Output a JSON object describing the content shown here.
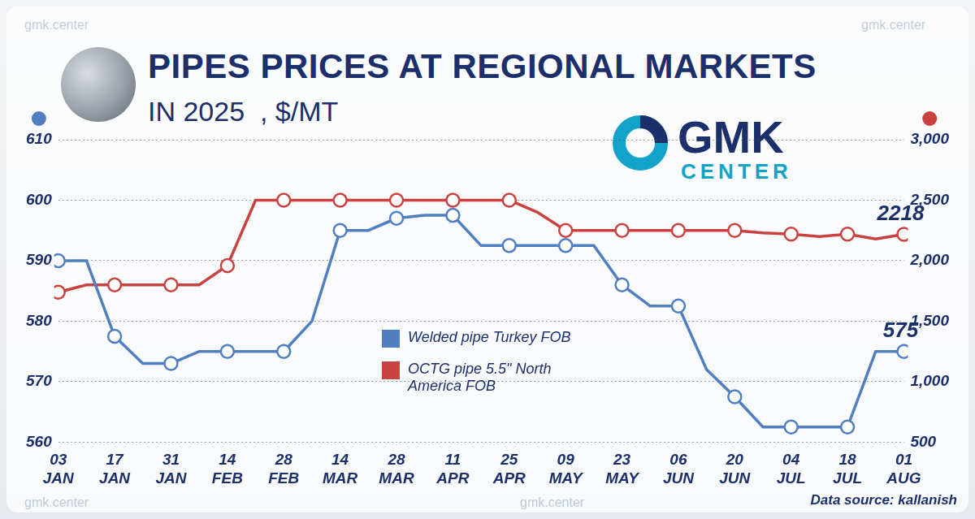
{
  "chart_data": {
    "type": "line",
    "title": "PIPES PRICES AT REGIONAL MARKETS",
    "subtitle": "IN 2025  , $/MT",
    "brand": [
      "GMK",
      "CENTER"
    ],
    "watermark": "gmk.center",
    "source": "Data source: kallanish",
    "categories": [
      "03 JAN",
      null,
      "17 JAN",
      null,
      "31 JAN",
      null,
      "14 FEB",
      null,
      "28 FEB",
      null,
      "14 MAR",
      null,
      "28 MAR",
      null,
      "11 APR",
      null,
      "25 APR",
      null,
      "09 MAY",
      null,
      "23 MAY",
      null,
      "06 JUN",
      null,
      "20 JUN",
      null,
      "04 JUL",
      null,
      "18 JUL",
      null,
      "01 AUG"
    ],
    "series": [
      {
        "name": "Welded pipe Turkey FOB",
        "color": "#4f7fc1",
        "axis": "y",
        "marker": "circle",
        "values": [
          590,
          590,
          577.5,
          573,
          573,
          575,
          575,
          575,
          575,
          580,
          595,
          595,
          597,
          597.5,
          597.5,
          592.5,
          592.5,
          592.5,
          592.5,
          592.5,
          586,
          582.5,
          582.5,
          572,
          567.5,
          562.5,
          562.5,
          562.5,
          562.5,
          575,
          575
        ]
      },
      {
        "name": "OCTG pipe 5.5\" North America FOB",
        "color": "#c9423f",
        "axis": "y2",
        "marker": "circle",
        "values": [
          1740,
          1800,
          1800,
          1800,
          1800,
          1800,
          1960,
          2500,
          2500,
          2500,
          2500,
          2500,
          2500,
          2500,
          2500,
          2500,
          2500,
          2400,
          2250,
          2250,
          2250,
          2250,
          2250,
          2250,
          2250,
          2230,
          2220,
          2200,
          2220,
          2180,
          2218
        ]
      }
    ],
    "ylim": [
      560,
      610
    ],
    "yticks": [
      560,
      570,
      580,
      590,
      600,
      610
    ],
    "y2lim": [
      500,
      3000
    ],
    "y2ticks": [
      500,
      1000,
      1500,
      2000,
      2500,
      3000
    ],
    "grid": true,
    "legend": "center",
    "annotations": [
      {
        "text": "575",
        "x": "01 AUG",
        "y": 575,
        "axis": "y"
      },
      {
        "text": "2218",
        "x": "01 AUG",
        "y": 2218,
        "axis": "y2"
      }
    ]
  }
}
